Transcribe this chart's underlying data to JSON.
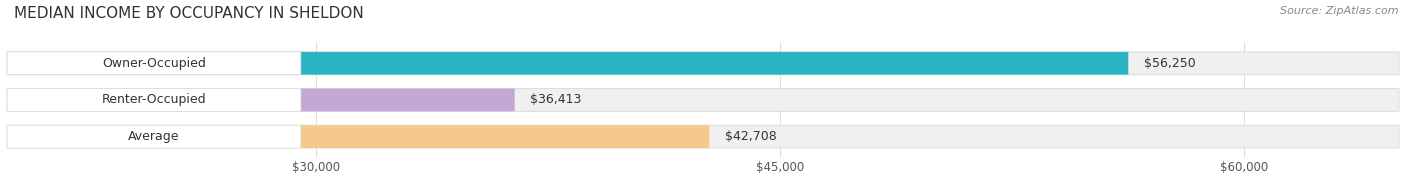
{
  "title": "MEDIAN INCOME BY OCCUPANCY IN SHELDON",
  "source": "Source: ZipAtlas.com",
  "categories": [
    "Owner-Occupied",
    "Renter-Occupied",
    "Average"
  ],
  "values": [
    56250,
    36413,
    42708
  ],
  "bar_colors": [
    "#2ab5c4",
    "#c4a8d4",
    "#f5c98e"
  ],
  "bar_bg_color": "#f0f0f0",
  "bar_border_color": "#dddddd",
  "value_labels": [
    "$56,250",
    "$36,413",
    "$42,708"
  ],
  "x_ticks": [
    30000,
    45000,
    60000
  ],
  "x_tick_labels": [
    "$30,000",
    "$45,000",
    "$60,000"
  ],
  "xmin": 20000,
  "xmax": 65000,
  "title_fontsize": 11,
  "source_fontsize": 8,
  "bar_label_fontsize": 9,
  "value_label_fontsize": 9,
  "tick_fontsize": 8.5,
  "background_color": "#ffffff",
  "grid_color": "#dddddd"
}
